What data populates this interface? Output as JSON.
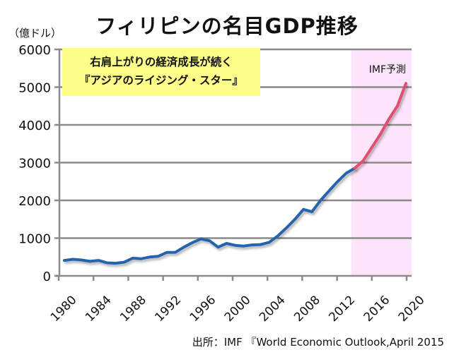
{
  "chart_data": {
    "type": "line",
    "title": "フィリピンの名目GDP推移",
    "ylabel": "（億ドル）",
    "ylim": [
      0,
      6000
    ],
    "yticks": [
      0,
      1000,
      2000,
      3000,
      4000,
      5000,
      6000
    ],
    "xlim": [
      1980,
      2020
    ],
    "xticks": [
      1980,
      1984,
      1988,
      1992,
      1996,
      2000,
      2004,
      2008,
      2012,
      2016,
      2020
    ],
    "grid": true,
    "annotation": [
      "右肩上がりの経済成長が続く",
      "『アジアのライジング・スター』"
    ],
    "forecast_label": "IMF予測",
    "forecast_start": 2014,
    "source": "出所：IMF 『World Economic Outlook,April 2015",
    "colors": {
      "actual": "#2563ad",
      "forecast": "#e0506e",
      "forecast_bg": "#fce4fa",
      "callout_bg": "#fdfd8a",
      "grid": "#8a8a8a"
    },
    "series": [
      {
        "segment": "actual",
        "x": [
          1980,
          1981,
          1982,
          1983,
          1984,
          1985,
          1986,
          1987,
          1988,
          1989,
          1990,
          1991,
          1992,
          1993,
          1994,
          1995,
          1996,
          1997,
          1998,
          1999,
          2000,
          2001,
          2002,
          2003,
          2004,
          2005,
          2006,
          2007,
          2008,
          2009,
          2010,
          2011,
          2012,
          2013,
          2014
        ],
        "values": [
          410,
          440,
          420,
          385,
          410,
          345,
          335,
          360,
          470,
          455,
          500,
          520,
          620,
          625,
          760,
          880,
          980,
          930,
          760,
          860,
          810,
          790,
          820,
          830,
          890,
          1060,
          1270,
          1500,
          1760,
          1700,
          2000,
          2250,
          2500,
          2720,
          2850
        ]
      },
      {
        "segment": "forecast",
        "x": [
          2014,
          2015,
          2016,
          2017,
          2018,
          2019,
          2020
        ],
        "values": [
          2850,
          3050,
          3400,
          3750,
          4150,
          4500,
          5100
        ]
      }
    ]
  }
}
